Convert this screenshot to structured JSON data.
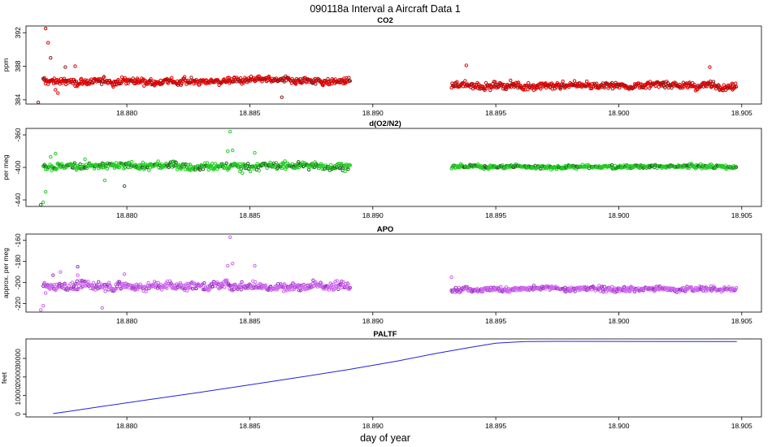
{
  "title": "090118a   Interval a Aircraft Data 1",
  "xlabel": "day of year",
  "colors": {
    "co2": "#e00000",
    "o2n2": "#22cc22",
    "apo": "#cc66ee",
    "paltf": "#2222dd"
  },
  "chart_data": [
    {
      "type": "scatter",
      "title": "CO2",
      "ylabel": "ppm",
      "xlim": [
        18.8759,
        18.9058
      ],
      "ylim": [
        383.5,
        392.8
      ],
      "x_ticks": [
        18.88,
        18.885,
        18.89,
        18.895,
        18.9,
        18.905
      ],
      "x_tick_labels": [
        "18.880",
        "18.885",
        "18.890",
        "18.895",
        "18.900",
        "18.905"
      ],
      "y_ticks": [
        384,
        388,
        392
      ],
      "y_tick_labels": [
        "384",
        "388",
        "392"
      ],
      "segments": [
        {
          "start": 18.8766,
          "end": 18.8891,
          "step": 2.5e-05,
          "base": 386.2,
          "noise": 0.45
        },
        {
          "start": 18.8932,
          "end": 18.9048,
          "step": 2.5e-05,
          "base": 385.7,
          "noise": 0.45
        }
      ],
      "points": [
        {
          "x": 18.8764,
          "y": 383.7
        },
        {
          "x": 18.8767,
          "y": 392.5
        },
        {
          "x": 18.8768,
          "y": 390.8
        },
        {
          "x": 18.8769,
          "y": 389.0
        },
        {
          "x": 18.8771,
          "y": 385.2
        },
        {
          "x": 18.8772,
          "y": 384.8
        },
        {
          "x": 18.8775,
          "y": 387.9
        },
        {
          "x": 18.8779,
          "y": 388.0
        },
        {
          "x": 18.8863,
          "y": 384.3
        },
        {
          "x": 18.8938,
          "y": 388.1
        },
        {
          "x": 18.9037,
          "y": 387.9
        }
      ]
    },
    {
      "type": "scatter",
      "title": "d(O2/N2)",
      "ylabel": "per meg",
      "xlim": [
        18.8759,
        18.9058
      ],
      "ylim": [
        -448,
        -352
      ],
      "x_ticks": [
        18.88,
        18.885,
        18.89,
        18.895,
        18.9,
        18.905
      ],
      "x_tick_labels": [
        "18.880",
        "18.885",
        "18.890",
        "18.895",
        "18.900",
        "18.905"
      ],
      "y_ticks": [
        -440,
        -400,
        -360
      ],
      "y_tick_labels": [
        "-440",
        "-400",
        "-360"
      ],
      "segments": [
        {
          "start": 18.8766,
          "end": 18.8891,
          "step": 2.5e-05,
          "base": -398,
          "noise": 5.0
        },
        {
          "start": 18.8932,
          "end": 18.9048,
          "step": 2.5e-05,
          "base": -399,
          "noise": 2.5
        }
      ],
      "points": [
        {
          "x": 18.8765,
          "y": -446
        },
        {
          "x": 18.8766,
          "y": -443
        },
        {
          "x": 18.8767,
          "y": -430
        },
        {
          "x": 18.8769,
          "y": -387
        },
        {
          "x": 18.8771,
          "y": -383
        },
        {
          "x": 18.8783,
          "y": -390
        },
        {
          "x": 18.8791,
          "y": -416
        },
        {
          "x": 18.8799,
          "y": -423
        },
        {
          "x": 18.8842,
          "y": -356
        },
        {
          "x": 18.8841,
          "y": -380
        },
        {
          "x": 18.8843,
          "y": -379
        },
        {
          "x": 18.8852,
          "y": -382
        },
        {
          "x": 18.8846,
          "y": -405
        },
        {
          "x": 18.8847,
          "y": -407
        }
      ]
    },
    {
      "type": "scatter",
      "title": "APO",
      "ylabel": "approx. per meg",
      "xlim": [
        18.8759,
        18.9058
      ],
      "ylim": [
        -228,
        -154
      ],
      "x_ticks": [
        18.88,
        18.885,
        18.89,
        18.895,
        18.9,
        18.905
      ],
      "x_tick_labels": [
        "18.880",
        "18.885",
        "18.890",
        "18.895",
        "18.900",
        "18.905"
      ],
      "y_ticks": [
        -220,
        -200,
        -180,
        -160
      ],
      "y_tick_labels": [
        "-220",
        "-200",
        "-180",
        "-160"
      ],
      "segments": [
        {
          "start": 18.8766,
          "end": 18.8891,
          "step": 2.5e-05,
          "base": -203,
          "noise": 4.5
        },
        {
          "start": 18.8932,
          "end": 18.9048,
          "step": 2.5e-05,
          "base": -206,
          "noise": 2.8
        }
      ],
      "points": [
        {
          "x": 18.8765,
          "y": -226
        },
        {
          "x": 18.8766,
          "y": -222
        },
        {
          "x": 18.8767,
          "y": -210
        },
        {
          "x": 18.877,
          "y": -193
        },
        {
          "x": 18.8773,
          "y": -190
        },
        {
          "x": 18.878,
          "y": -185
        },
        {
          "x": 18.878,
          "y": -193
        },
        {
          "x": 18.879,
          "y": -224
        },
        {
          "x": 18.8799,
          "y": -192
        },
        {
          "x": 18.8842,
          "y": -157
        },
        {
          "x": 18.8843,
          "y": -182
        },
        {
          "x": 18.8841,
          "y": -184
        },
        {
          "x": 18.8852,
          "y": -184
        },
        {
          "x": 18.8932,
          "y": -195
        }
      ]
    },
    {
      "type": "line",
      "title": "PALTF",
      "ylabel": "feet",
      "xlim": [
        18.8759,
        18.9058
      ],
      "ylim": [
        -1500,
        40500
      ],
      "x_ticks": [
        18.88,
        18.885,
        18.89,
        18.895,
        18.9,
        18.905
      ],
      "x_tick_labels": [
        "18.880",
        "18.885",
        "18.890",
        "18.895",
        "18.900",
        "18.905"
      ],
      "y_ticks": [
        0,
        10000,
        20000,
        30000
      ],
      "y_tick_labels": [
        "0",
        "10000",
        "20000",
        "30000"
      ],
      "x": [
        18.877,
        18.8776,
        18.879,
        18.881,
        18.883,
        18.885,
        18.887,
        18.889,
        18.891,
        18.8925,
        18.894,
        18.895,
        18.8962,
        18.8975,
        18.9,
        18.9048
      ],
      "y": [
        300,
        1400,
        4200,
        8000,
        11800,
        15800,
        19800,
        24000,
        28600,
        32500,
        36000,
        38200,
        39100,
        39200,
        39150,
        39100
      ]
    }
  ]
}
